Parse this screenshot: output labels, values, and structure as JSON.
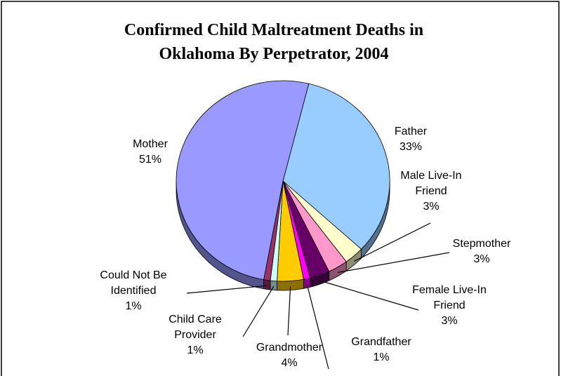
{
  "chart_data": {
    "type": "pie3d",
    "title": "Confirmed Child Maltreatment Deaths in Oklahoma By Perpetrator, 2004",
    "categories": [
      "Father",
      "Male Live-In Friend",
      "Stepmother",
      "Female Live-In Friend",
      "Grandfather",
      "Grandmother",
      "Child Care Provider",
      "Could Not Be Identified",
      "Mother"
    ],
    "values": [
      33,
      3,
      3,
      3,
      1,
      4,
      1,
      1,
      51
    ],
    "value_labels": [
      "33%",
      "3%",
      "3%",
      "3%",
      "1%",
      "4%",
      "1%",
      "1%",
      "51%"
    ],
    "colors": [
      "#99ccff",
      "#ffffcc",
      "#ff99cc",
      "#660066",
      "#ff00ff",
      "#ffcc00",
      "#ccffff",
      "#993366",
      "#9999ff"
    ]
  }
}
